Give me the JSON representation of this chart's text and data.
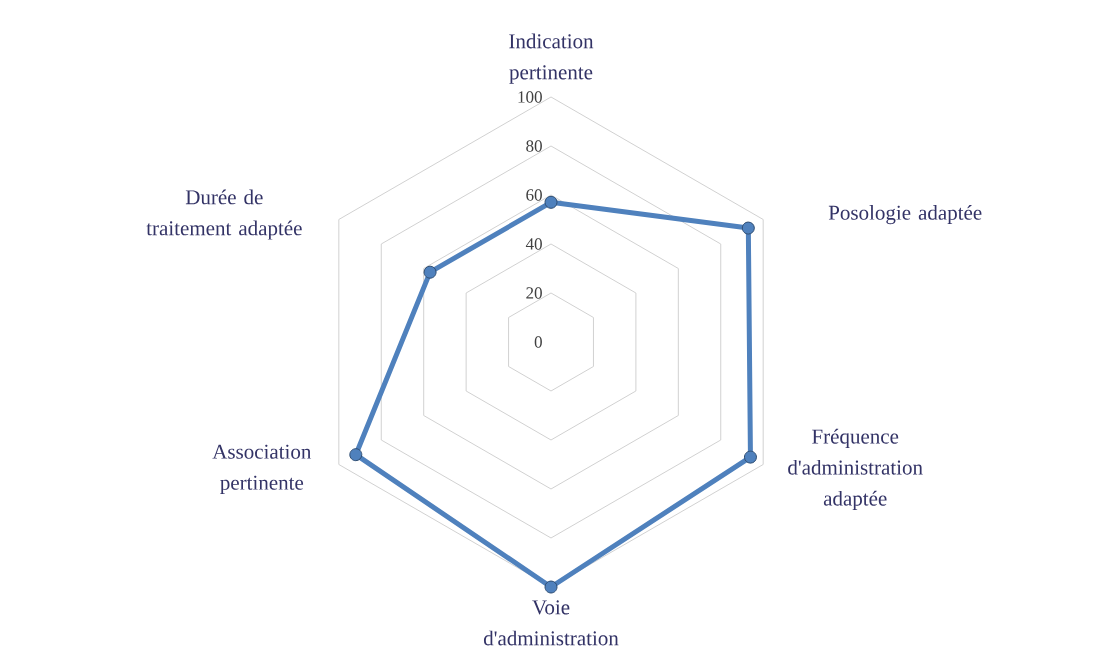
{
  "chart_data": {
    "type": "radar",
    "categories": [
      "Indication pertinente",
      "Posologie adaptée",
      "Fréquence d'administration adaptée",
      "Voie d'administration",
      "Association pertinente",
      "Durée de traitement adaptée"
    ],
    "series": [
      {
        "color": "#4f81bd",
        "values": [
          57,
          93,
          94,
          100,
          92,
          57
        ]
      }
    ],
    "ylim": [
      0,
      100
    ],
    "yticks": [
      0,
      20,
      40,
      60,
      80,
      100
    ],
    "grid": true,
    "marker": "circle"
  }
}
